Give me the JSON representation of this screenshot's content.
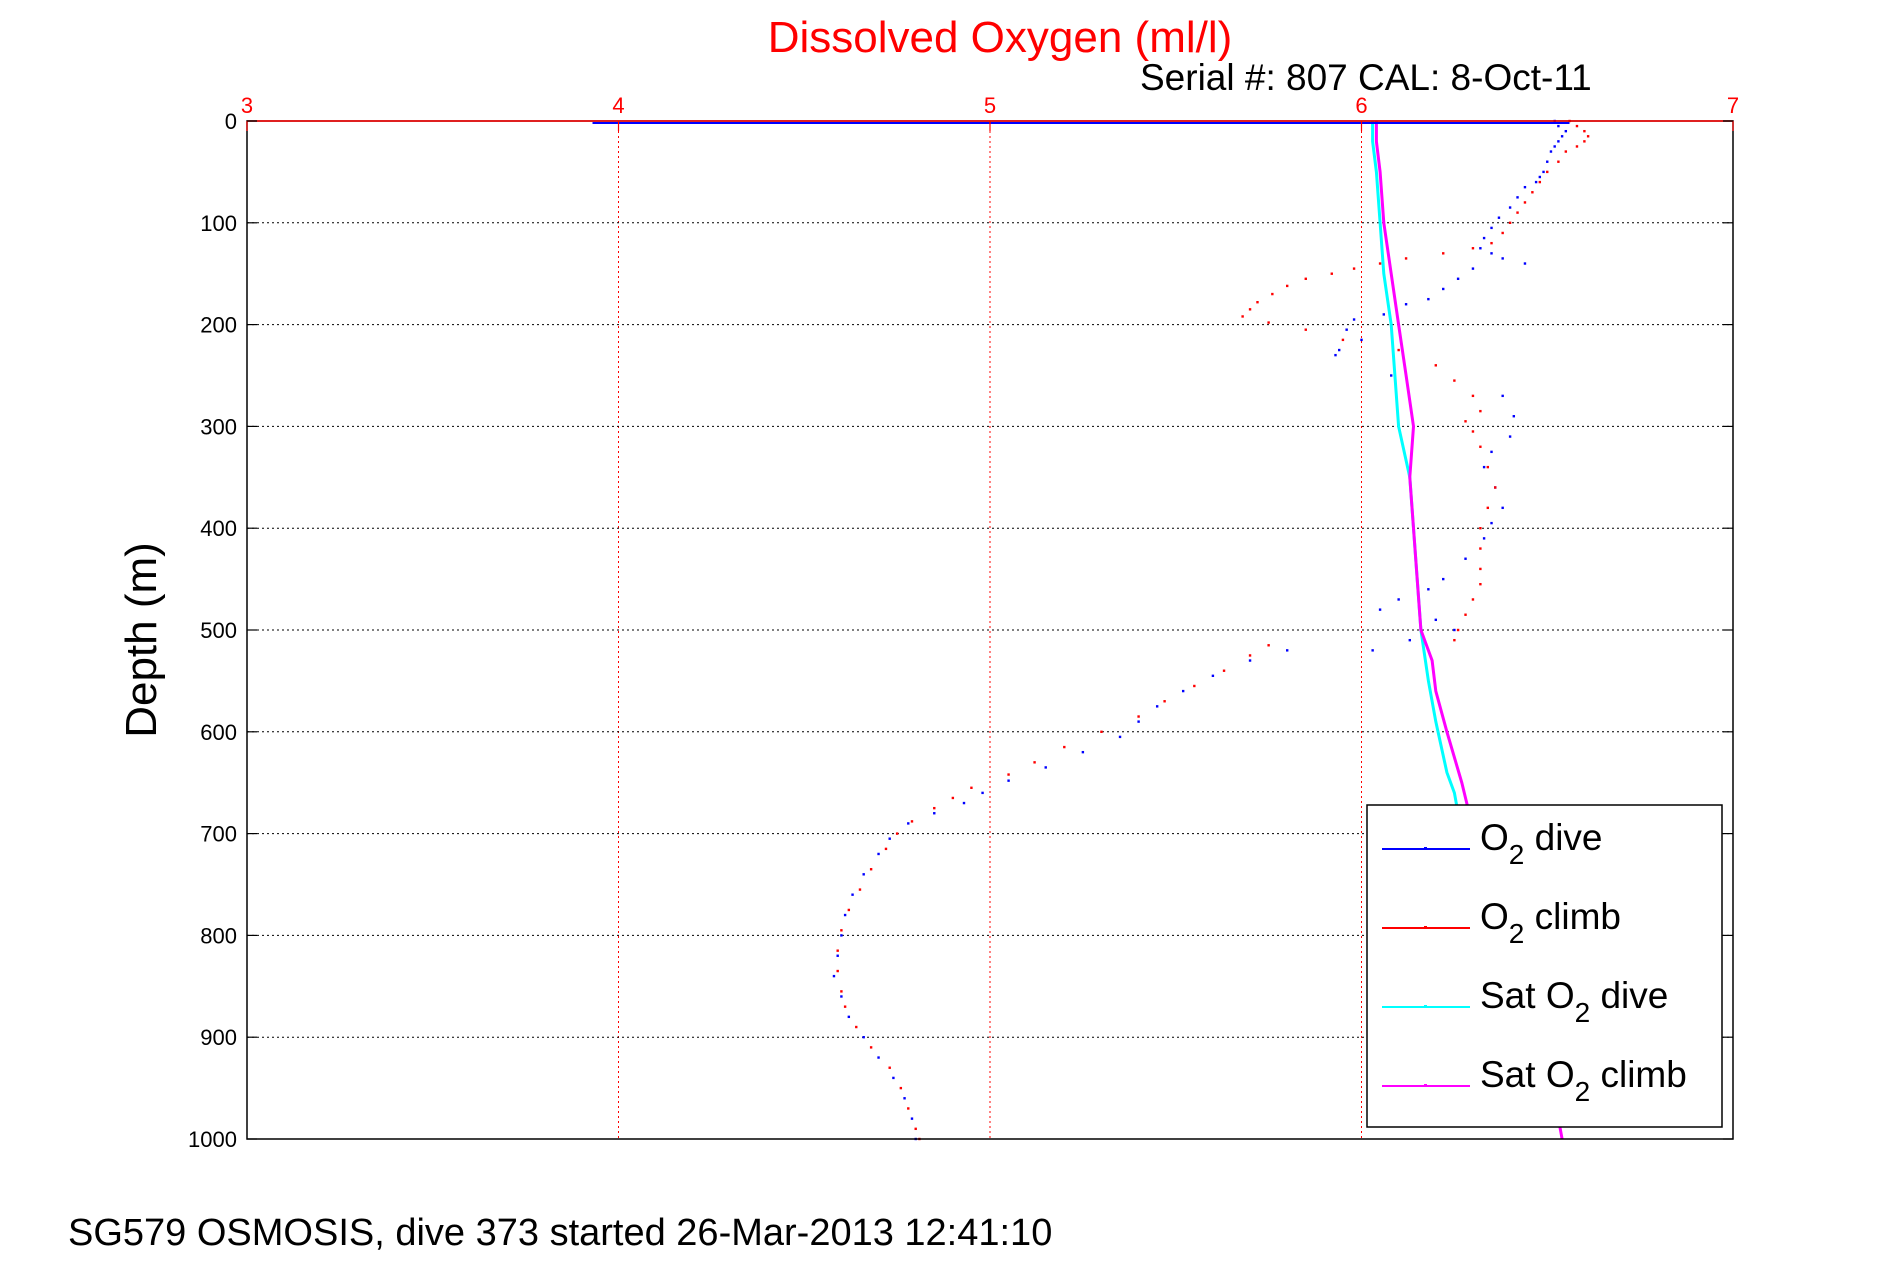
{
  "figure": {
    "footer": "SG579 OSMOSIS, dive 373 started 26-Mar-2013 12:41:10",
    "serial_label": "Serial #: 807  CAL: 8-Oct-11"
  },
  "chart_data": {
    "type": "scatter",
    "title": "Dissolved Oxygen (ml/l)",
    "title_color": "#ff0000",
    "xlabel": "",
    "ylabel": "Depth (m)",
    "xlim": [
      3,
      7
    ],
    "ylim": [
      0,
      1000
    ],
    "y_reversed": true,
    "x_axis_position": "top",
    "x_ticks": [
      "3",
      "4",
      "5",
      "6",
      "7"
    ],
    "y_ticks": [
      "0",
      "100",
      "200",
      "300",
      "400",
      "500",
      "600",
      "700",
      "800",
      "900",
      "1000"
    ],
    "grid": true,
    "legend_position": "bottom-right",
    "series": [
      {
        "name": "O2 dive",
        "legend": [
          "O",
          "2",
          " dive"
        ],
        "color": "#0000ff",
        "style": "dots",
        "points": [
          [
            6.52,
            0
          ],
          [
            6.53,
            5
          ],
          [
            6.55,
            10
          ],
          [
            6.54,
            15
          ],
          [
            6.53,
            20
          ],
          [
            6.52,
            25
          ],
          [
            6.51,
            30
          ],
          [
            6.5,
            40
          ],
          [
            6.49,
            50
          ],
          [
            6.48,
            55
          ],
          [
            6.47,
            60
          ],
          [
            6.44,
            65
          ],
          [
            6.42,
            75
          ],
          [
            6.4,
            85
          ],
          [
            6.37,
            95
          ],
          [
            6.35,
            105
          ],
          [
            6.33,
            115
          ],
          [
            6.32,
            125
          ],
          [
            6.35,
            130
          ],
          [
            6.38,
            135
          ],
          [
            6.44,
            140
          ],
          [
            6.3,
            145
          ],
          [
            6.26,
            155
          ],
          [
            6.22,
            165
          ],
          [
            6.18,
            175
          ],
          [
            6.12,
            180
          ],
          [
            6.06,
            190
          ],
          [
            5.98,
            195
          ],
          [
            5.96,
            205
          ],
          [
            6.0,
            215
          ],
          [
            5.94,
            225
          ],
          [
            5.93,
            230
          ],
          [
            6.08,
            250
          ],
          [
            6.38,
            270
          ],
          [
            6.41,
            290
          ],
          [
            6.4,
            310
          ],
          [
            6.35,
            325
          ],
          [
            6.33,
            340
          ],
          [
            6.36,
            360
          ],
          [
            6.38,
            380
          ],
          [
            6.35,
            395
          ],
          [
            6.33,
            410
          ],
          [
            6.28,
            430
          ],
          [
            6.22,
            450
          ],
          [
            6.18,
            460
          ],
          [
            6.1,
            470
          ],
          [
            6.05,
            480
          ],
          [
            6.2,
            490
          ],
          [
            6.25,
            500
          ],
          [
            6.03,
            520
          ],
          [
            6.13,
            510
          ],
          [
            5.8,
            520
          ],
          [
            5.7,
            530
          ],
          [
            5.6,
            545
          ],
          [
            5.52,
            560
          ],
          [
            5.45,
            575
          ],
          [
            5.4,
            590
          ],
          [
            5.35,
            605
          ],
          [
            5.25,
            620
          ],
          [
            5.15,
            635
          ],
          [
            5.05,
            648
          ],
          [
            4.98,
            660
          ],
          [
            4.93,
            670
          ],
          [
            4.85,
            680
          ],
          [
            4.78,
            690
          ],
          [
            4.73,
            705
          ],
          [
            4.7,
            720
          ],
          [
            4.66,
            740
          ],
          [
            4.63,
            760
          ],
          [
            4.61,
            780
          ],
          [
            4.6,
            800
          ],
          [
            4.59,
            820
          ],
          [
            4.58,
            840
          ],
          [
            4.6,
            860
          ],
          [
            4.62,
            880
          ],
          [
            4.66,
            900
          ],
          [
            4.7,
            920
          ],
          [
            4.74,
            940
          ],
          [
            4.77,
            960
          ],
          [
            4.79,
            980
          ],
          [
            4.8,
            1000
          ]
        ]
      },
      {
        "name": "O2 climb",
        "legend": [
          "O",
          "2",
          " climb"
        ],
        "color": "#ff0000",
        "style": "dots",
        "points": [
          [
            6.56,
            0
          ],
          [
            6.58,
            5
          ],
          [
            6.6,
            10
          ],
          [
            6.61,
            15
          ],
          [
            6.6,
            20
          ],
          [
            6.58,
            25
          ],
          [
            6.55,
            30
          ],
          [
            6.53,
            40
          ],
          [
            6.5,
            50
          ],
          [
            6.48,
            60
          ],
          [
            6.46,
            70
          ],
          [
            6.44,
            80
          ],
          [
            6.42,
            90
          ],
          [
            6.4,
            100
          ],
          [
            6.38,
            110
          ],
          [
            6.35,
            120
          ],
          [
            6.3,
            125
          ],
          [
            6.22,
            130
          ],
          [
            6.12,
            135
          ],
          [
            6.05,
            140
          ],
          [
            5.98,
            145
          ],
          [
            5.92,
            150
          ],
          [
            5.85,
            155
          ],
          [
            5.8,
            162
          ],
          [
            5.76,
            170
          ],
          [
            5.72,
            178
          ],
          [
            5.7,
            185
          ],
          [
            5.68,
            192
          ],
          [
            5.75,
            198
          ],
          [
            5.85,
            205
          ],
          [
            5.95,
            215
          ],
          [
            6.1,
            225
          ],
          [
            6.2,
            240
          ],
          [
            6.25,
            255
          ],
          [
            6.3,
            270
          ],
          [
            6.32,
            285
          ],
          [
            6.28,
            295
          ],
          [
            6.3,
            305
          ],
          [
            6.32,
            320
          ],
          [
            6.34,
            340
          ],
          [
            6.36,
            360
          ],
          [
            6.34,
            380
          ],
          [
            6.32,
            400
          ],
          [
            6.32,
            420
          ],
          [
            6.32,
            440
          ],
          [
            6.32,
            455
          ],
          [
            6.3,
            470
          ],
          [
            6.28,
            485
          ],
          [
            6.26,
            500
          ],
          [
            6.25,
            510
          ],
          [
            5.75,
            515
          ],
          [
            5.7,
            525
          ],
          [
            5.63,
            540
          ],
          [
            5.55,
            555
          ],
          [
            5.47,
            570
          ],
          [
            5.4,
            585
          ],
          [
            5.3,
            600
          ],
          [
            5.2,
            615
          ],
          [
            5.12,
            630
          ],
          [
            5.05,
            642
          ],
          [
            4.95,
            655
          ],
          [
            4.9,
            665
          ],
          [
            4.85,
            675
          ],
          [
            4.79,
            688
          ],
          [
            4.75,
            700
          ],
          [
            4.72,
            715
          ],
          [
            4.68,
            735
          ],
          [
            4.65,
            755
          ],
          [
            4.62,
            775
          ],
          [
            4.6,
            795
          ],
          [
            4.59,
            815
          ],
          [
            4.59,
            835
          ],
          [
            4.6,
            855
          ],
          [
            4.61,
            870
          ],
          [
            4.64,
            890
          ],
          [
            4.68,
            910
          ],
          [
            4.73,
            930
          ],
          [
            4.76,
            950
          ],
          [
            4.78,
            970
          ],
          [
            4.8,
            990
          ],
          [
            4.81,
            1000
          ]
        ]
      },
      {
        "name": "Sat O2 dive",
        "legend": [
          "Sat O",
          "2",
          " dive"
        ],
        "color": "#00ffff",
        "style": "line",
        "points": [
          [
            6.03,
            0
          ],
          [
            6.03,
            20
          ],
          [
            6.04,
            50
          ],
          [
            6.05,
            100
          ],
          [
            6.06,
            150
          ],
          [
            6.08,
            200
          ],
          [
            6.09,
            250
          ],
          [
            6.1,
            300
          ],
          [
            6.13,
            350
          ],
          [
            6.14,
            400
          ],
          [
            6.15,
            450
          ],
          [
            6.16,
            500
          ],
          [
            6.18,
            550
          ],
          [
            6.2,
            590
          ],
          [
            6.23,
            640
          ],
          [
            6.25,
            660
          ],
          [
            6.27,
            700
          ]
        ]
      },
      {
        "name": "Sat O2 climb",
        "legend": [
          "Sat O",
          "2",
          " climb"
        ],
        "color": "#ff00ff",
        "style": "line",
        "points": [
          [
            6.04,
            0
          ],
          [
            6.04,
            20
          ],
          [
            6.05,
            50
          ],
          [
            6.06,
            100
          ],
          [
            6.08,
            150
          ],
          [
            6.1,
            200
          ],
          [
            6.12,
            250
          ],
          [
            6.14,
            300
          ],
          [
            6.13,
            350
          ],
          [
            6.14,
            400
          ],
          [
            6.15,
            450
          ],
          [
            6.16,
            500
          ],
          [
            6.19,
            530
          ],
          [
            6.2,
            560
          ],
          [
            6.23,
            600
          ],
          [
            6.27,
            650
          ],
          [
            6.29,
            680
          ],
          [
            6.35,
            730
          ],
          [
            6.4,
            790
          ],
          [
            6.45,
            850
          ],
          [
            6.48,
            900
          ],
          [
            6.52,
            960
          ],
          [
            6.54,
            1000
          ]
        ]
      },
      {
        "name": "surface",
        "color": "#0000ff",
        "style": "surface-line",
        "points": [
          [
            3.93,
            2
          ],
          [
            6.56,
            2
          ]
        ]
      }
    ]
  }
}
